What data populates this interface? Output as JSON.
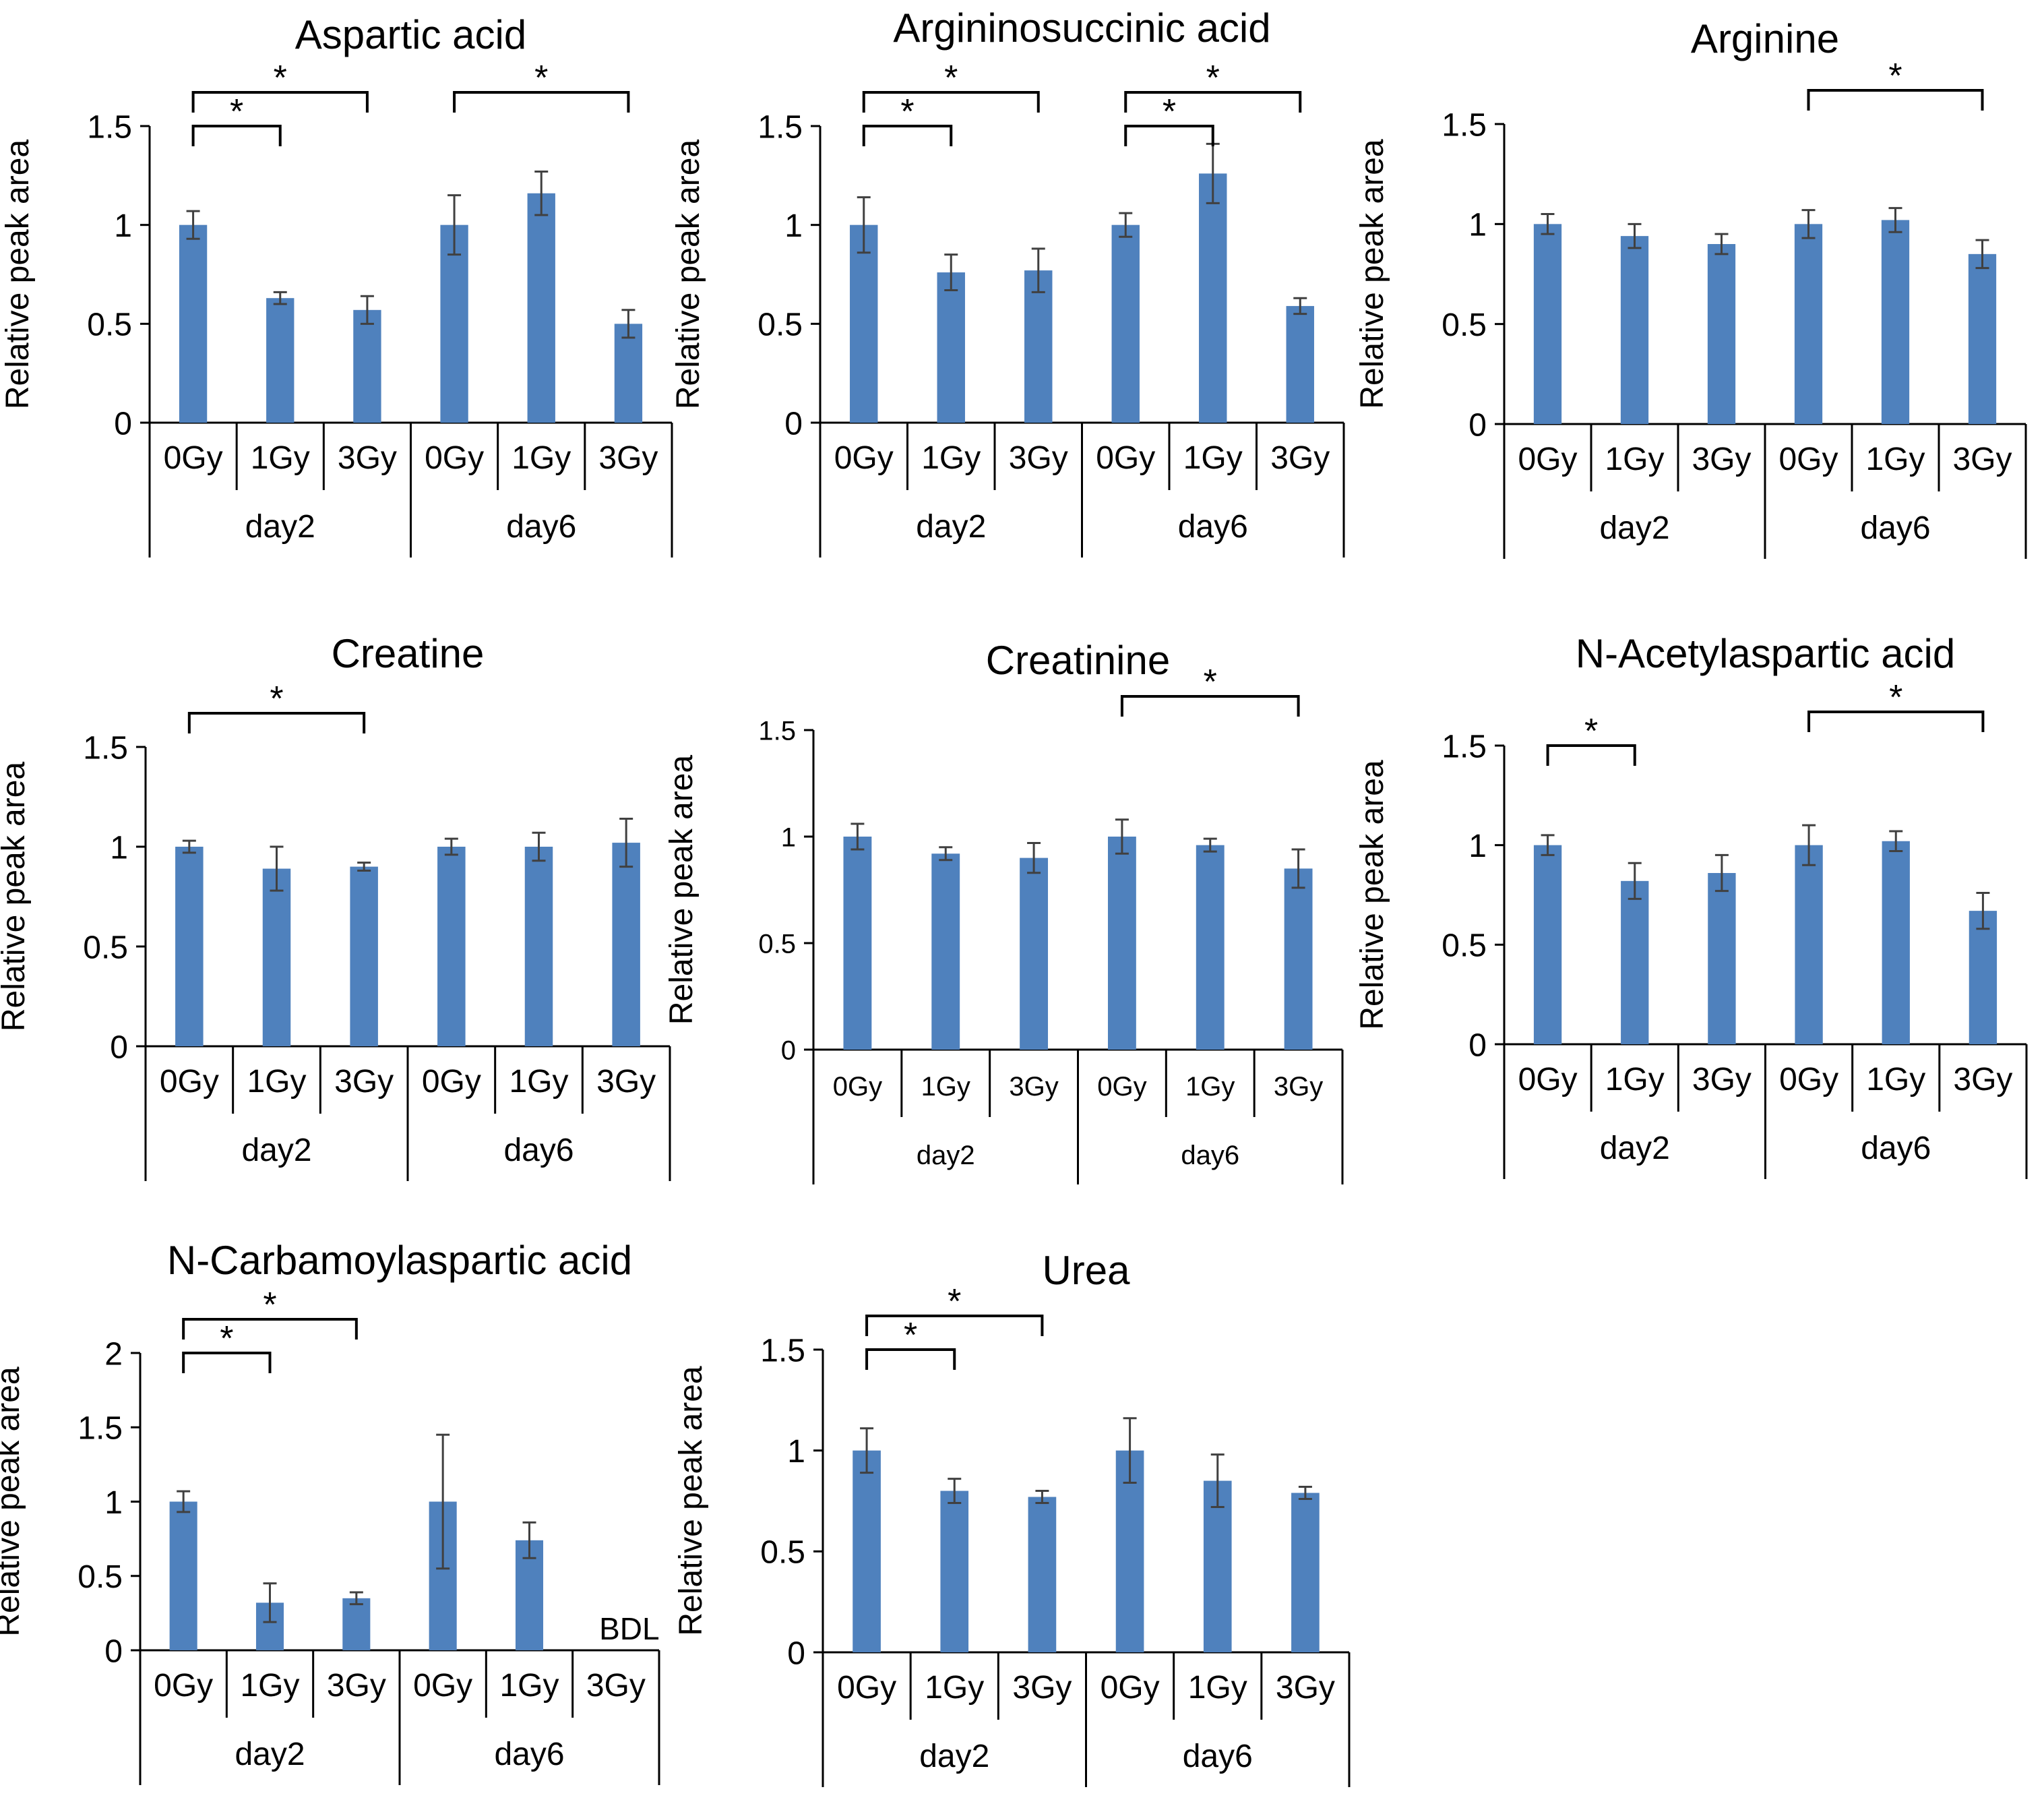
{
  "chart_data": [
    {
      "type": "bar",
      "title": "Aspartic acid",
      "ylabel": "Relative peak area",
      "ylim": [
        0,
        1.5
      ],
      "yticks": [
        "0",
        "0.5",
        "1",
        "1.5"
      ],
      "groups": [
        "day2",
        "day6"
      ],
      "categories": [
        "0Gy",
        "1Gy",
        "3Gy",
        "0Gy",
        "1Gy",
        "3Gy"
      ],
      "values": [
        1.0,
        0.63,
        0.57,
        1.0,
        1.16,
        0.5
      ],
      "errors": [
        0.07,
        0.03,
        0.07,
        0.15,
        0.11,
        0.07
      ],
      "significance": [
        {
          "from": 0,
          "to": 1,
          "label": "*",
          "level": 1
        },
        {
          "from": 0,
          "to": 2,
          "label": "*",
          "level": 2
        },
        {
          "from": 3,
          "to": 5,
          "label": "*",
          "level": 2
        }
      ],
      "annotations": []
    },
    {
      "type": "bar",
      "title": "Argininosuccinic acid",
      "ylabel": "Relative peak area",
      "ylim": [
        0,
        1.5
      ],
      "yticks": [
        "0",
        "0.5",
        "1",
        "1.5"
      ],
      "groups": [
        "day2",
        "day6"
      ],
      "categories": [
        "0Gy",
        "1Gy",
        "3Gy",
        "0Gy",
        "1Gy",
        "3Gy"
      ],
      "values": [
        1.0,
        0.76,
        0.77,
        1.0,
        1.26,
        0.59
      ],
      "errors": [
        0.14,
        0.09,
        0.11,
        0.06,
        0.15,
        0.04
      ],
      "significance": [
        {
          "from": 0,
          "to": 1,
          "label": "*",
          "level": 1
        },
        {
          "from": 0,
          "to": 2,
          "label": "*",
          "level": 2
        },
        {
          "from": 3,
          "to": 4,
          "label": "*",
          "level": 1
        },
        {
          "from": 3,
          "to": 5,
          "label": "*",
          "level": 2
        }
      ],
      "annotations": []
    },
    {
      "type": "bar",
      "title": "Arginine",
      "ylabel": "Relative peak area",
      "ylim": [
        0,
        1.5
      ],
      "yticks": [
        "0",
        "0.5",
        "1",
        "1.5"
      ],
      "groups": [
        "day2",
        "day6"
      ],
      "categories": [
        "0Gy",
        "1Gy",
        "3Gy",
        "0Gy",
        "1Gy",
        "3Gy"
      ],
      "values": [
        1.0,
        0.94,
        0.9,
        1.0,
        1.02,
        0.85
      ],
      "errors": [
        0.05,
        0.06,
        0.05,
        0.07,
        0.06,
        0.07
      ],
      "significance": [
        {
          "from": 3,
          "to": 5,
          "label": "*",
          "level": 2
        }
      ],
      "annotations": []
    },
    {
      "type": "bar",
      "title": "Creatine",
      "ylabel": "Relative peak area",
      "ylim": [
        0,
        1.5
      ],
      "yticks": [
        "0",
        "0.5",
        "1",
        "1.5"
      ],
      "groups": [
        "day2",
        "day6"
      ],
      "categories": [
        "0Gy",
        "1Gy",
        "3Gy",
        "0Gy",
        "1Gy",
        "3Gy"
      ],
      "values": [
        1.0,
        0.89,
        0.9,
        1.0,
        1.0,
        1.02
      ],
      "errors": [
        0.03,
        0.11,
        0.02,
        0.04,
        0.07,
        0.12
      ],
      "significance": [
        {
          "from": 0,
          "to": 2,
          "label": "*",
          "level": 2
        }
      ],
      "annotations": []
    },
    {
      "type": "bar",
      "title": "Creatinine",
      "ylabel": "Relative peak area",
      "ylim": [
        0,
        1.5
      ],
      "yticks": [
        "0",
        "0.5",
        "1",
        "1.5"
      ],
      "groups": [
        "day2",
        "day6"
      ],
      "categories": [
        "0Gy",
        "1Gy",
        "3Gy",
        "0Gy",
        "1Gy",
        "3Gy"
      ],
      "values": [
        1.0,
        0.92,
        0.9,
        1.0,
        0.96,
        0.85
      ],
      "errors": [
        0.06,
        0.03,
        0.07,
        0.08,
        0.03,
        0.09
      ],
      "significance": [
        {
          "from": 3,
          "to": 5,
          "label": "*",
          "level": 2
        }
      ],
      "annotations": []
    },
    {
      "type": "bar",
      "title": "N-Acetylaspartic acid",
      "ylabel": "Relative peak area",
      "ylim": [
        0,
        1.5
      ],
      "yticks": [
        "0",
        "0.5",
        "1",
        "1.5"
      ],
      "groups": [
        "day2",
        "day6"
      ],
      "categories": [
        "0Gy",
        "1Gy",
        "3Gy",
        "0Gy",
        "1Gy",
        "3Gy"
      ],
      "values": [
        1.0,
        0.82,
        0.86,
        1.0,
        1.02,
        0.67
      ],
      "errors": [
        0.05,
        0.09,
        0.09,
        0.1,
        0.05,
        0.09
      ],
      "significance": [
        {
          "from": 0,
          "to": 1,
          "label": "*",
          "level": 1
        },
        {
          "from": 3,
          "to": 5,
          "label": "*",
          "level": 2
        }
      ],
      "annotations": []
    },
    {
      "type": "bar",
      "title": "N-Carbamoylaspartic acid",
      "ylabel": "Relative peak area",
      "ylim": [
        0,
        2
      ],
      "yticks": [
        "0",
        "0.5",
        "1",
        "1.5",
        "2"
      ],
      "groups": [
        "day2",
        "day6"
      ],
      "categories": [
        "0Gy",
        "1Gy",
        "3Gy",
        "0Gy",
        "1Gy",
        "3Gy"
      ],
      "values": [
        1.0,
        0.32,
        0.35,
        1.0,
        0.74,
        null
      ],
      "errors": [
        0.07,
        0.13,
        0.04,
        0.45,
        0.12,
        null
      ],
      "significance": [
        {
          "from": 0,
          "to": 1,
          "label": "*",
          "level": 1
        },
        {
          "from": 0,
          "to": 2,
          "label": "*",
          "level": 2
        }
      ],
      "annotations": [
        {
          "category": 5,
          "text": "BDL"
        }
      ]
    },
    {
      "type": "bar",
      "title": "Urea",
      "ylabel": "Relative peak area",
      "ylim": [
        0,
        1.5
      ],
      "yticks": [
        "0",
        "0.5",
        "1",
        "1.5"
      ],
      "groups": [
        "day2",
        "day6"
      ],
      "categories": [
        "0Gy",
        "1Gy",
        "3Gy",
        "0Gy",
        "1Gy",
        "3Gy"
      ],
      "values": [
        1.0,
        0.8,
        0.77,
        1.0,
        0.85,
        0.79
      ],
      "errors": [
        0.11,
        0.06,
        0.03,
        0.16,
        0.13,
        0.03
      ],
      "significance": [
        {
          "from": 0,
          "to": 1,
          "label": "*",
          "level": 1
        },
        {
          "from": 0,
          "to": 2,
          "label": "*",
          "level": 2
        }
      ],
      "annotations": []
    }
  ],
  "colors": {
    "bar": "#4f81bd",
    "error": "#404040",
    "axis": "#000000"
  }
}
